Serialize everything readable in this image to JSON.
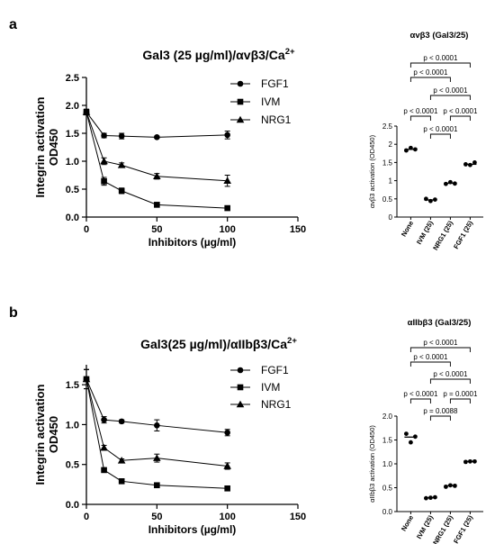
{
  "panels": [
    {
      "id": "a",
      "label": "a"
    },
    {
      "id": "b",
      "label": "b"
    }
  ],
  "chart_data": [
    {
      "panel": "a",
      "type": "line",
      "title": "Gal3 (25 µg/ml)/αvβ3/Ca2+",
      "xlabel": "Inhibitors (µg/ml)",
      "ylabel": "Integrin activation OD450",
      "xlim": [
        0,
        150
      ],
      "ylim": [
        0,
        2.5
      ],
      "xticks": [
        "0",
        "50",
        "100",
        "150"
      ],
      "yticks": [
        "0.0",
        "0.5",
        "1.0",
        "1.5",
        "2.0",
        "2.5"
      ],
      "x": [
        0,
        12.5,
        25,
        50,
        100
      ],
      "legend_position": "top-right",
      "series": [
        {
          "name": "FGF1",
          "marker": "circle",
          "values": [
            1.88,
            1.46,
            1.45,
            1.43,
            1.47
          ],
          "errors": [
            0.05,
            0.04,
            0.05,
            0.02,
            0.07
          ]
        },
        {
          "name": "IVM",
          "marker": "square",
          "values": [
            1.88,
            0.64,
            0.47,
            0.22,
            0.16
          ],
          "errors": [
            0.05,
            0.07,
            0.05,
            0.02,
            0.02
          ]
        },
        {
          "name": "NRG1",
          "marker": "triangle",
          "values": [
            1.88,
            1.0,
            0.93,
            0.73,
            0.65
          ],
          "errors": [
            0.05,
            0.06,
            0.04,
            0.05,
            0.1
          ]
        }
      ]
    },
    {
      "panel": "a",
      "type": "scatter",
      "title": "αvβ3 (Gal3/25)",
      "ylabel": "αvβ3 activation (OD450)",
      "ylim": [
        0,
        2.5
      ],
      "yticks": [
        "0",
        "0.5",
        "1",
        "1.5",
        "2",
        "2.5"
      ],
      "categories": [
        "None",
        "IVM (25)",
        "NRG1 (25)",
        "FGF1 (25)"
      ],
      "points": [
        [
          1.83,
          1.9,
          1.86
        ],
        [
          0.5,
          0.44,
          0.48
        ],
        [
          0.91,
          0.96,
          0.92
        ],
        [
          1.45,
          1.43,
          1.5
        ]
      ],
      "means": [
        1.86,
        0.47,
        0.93,
        1.45
      ],
      "comparisons": [
        {
          "from": 0,
          "to": 3,
          "label": "p < 0.0001"
        },
        {
          "from": 0,
          "to": 2,
          "label": "p < 0.0001"
        },
        {
          "from": 1,
          "to": 3,
          "label": "p < 0.0001"
        },
        {
          "from": 0,
          "to": 1,
          "label": "p < 0.0001"
        },
        {
          "from": 2,
          "to": 3,
          "label": "p < 0.0001"
        },
        {
          "from": 1,
          "to": 2,
          "label": "p < 0.0001"
        }
      ]
    },
    {
      "panel": "b",
      "type": "line",
      "title": "Gal3(25 µg/ml)/αIIbβ3/Ca2+",
      "xlabel": "Inhibitors (µg/ml)",
      "ylabel": "Integrin activation OD450",
      "xlim": [
        0,
        150
      ],
      "ylim": [
        0,
        1.75
      ],
      "xticks": [
        "0",
        "50",
        "100",
        "150"
      ],
      "yticks": [
        "0.0",
        "0.5",
        "1.0",
        "1.5"
      ],
      "x": [
        0,
        12.5,
        25,
        50,
        100
      ],
      "legend_position": "top-right",
      "series": [
        {
          "name": "FGF1",
          "marker": "circle",
          "values": [
            1.57,
            1.06,
            1.04,
            0.99,
            0.9
          ],
          "errors": [
            0.12,
            0.04,
            0.02,
            0.07,
            0.04
          ]
        },
        {
          "name": "IVM",
          "marker": "square",
          "values": [
            1.57,
            0.43,
            0.29,
            0.24,
            0.2
          ],
          "errors": [
            0.12,
            0.02,
            0.02,
            0.02,
            0.02
          ]
        },
        {
          "name": "NRG1",
          "marker": "triangle",
          "values": [
            1.57,
            0.71,
            0.55,
            0.58,
            0.48
          ],
          "errors": [
            0.12,
            0.03,
            0.02,
            0.05,
            0.04
          ]
        }
      ]
    },
    {
      "panel": "b",
      "type": "scatter",
      "title": "αIIbβ3 (Gal3/25)",
      "ylabel": "αIIbβ3 activation (OD450)",
      "ylim": [
        0,
        2.0
      ],
      "yticks": [
        "0.0",
        "0.5",
        "1.0",
        "1.5",
        "2.0"
      ],
      "categories": [
        "None",
        "IVM (25)",
        "NRG1 (25)",
        "FGF1 (25)"
      ],
      "points": [
        [
          1.63,
          1.45,
          1.57
        ],
        [
          0.28,
          0.29,
          0.3
        ],
        [
          0.52,
          0.55,
          0.54
        ],
        [
          1.04,
          1.05,
          1.05
        ]
      ],
      "means": [
        1.56,
        0.29,
        0.54,
        1.05
      ],
      "comparisons": [
        {
          "from": 0,
          "to": 3,
          "label": "p < 0.0001"
        },
        {
          "from": 0,
          "to": 2,
          "label": "p < 0.0001"
        },
        {
          "from": 1,
          "to": 3,
          "label": "p < 0.0001"
        },
        {
          "from": 0,
          "to": 1,
          "label": "p < 0.0001"
        },
        {
          "from": 2,
          "to": 3,
          "label": "p = 0.0001"
        },
        {
          "from": 1,
          "to": 2,
          "label": "p = 0.0088"
        }
      ]
    }
  ]
}
